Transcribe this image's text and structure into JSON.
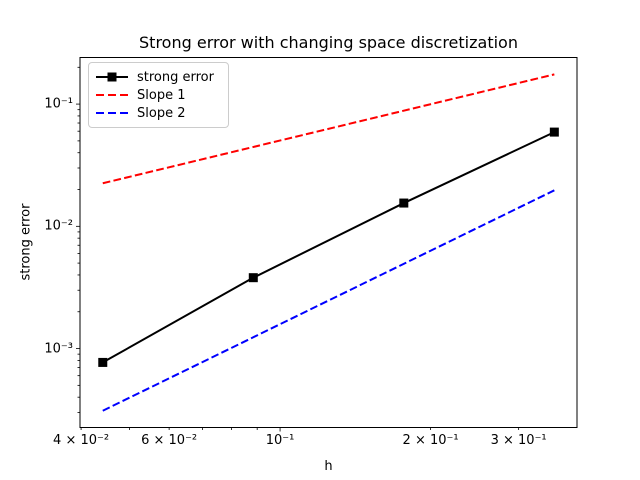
{
  "figure": {
    "title": "Strong error with changing space discretization",
    "xlabel": "h",
    "ylabel": "strong error"
  },
  "legend": {
    "entries": [
      {
        "label": "strong error",
        "color": "#000000",
        "linestyle": "solid",
        "marker": "square"
      },
      {
        "label": "Slope 1",
        "color": "#ff0000",
        "linestyle": "dashed",
        "marker": "none"
      },
      {
        "label": "Slope 2",
        "color": "#0000ff",
        "linestyle": "dashed",
        "marker": "none"
      }
    ]
  },
  "chart_data": {
    "type": "line",
    "title": "Strong error with changing space discretization",
    "xlabel": "h",
    "ylabel": "strong error",
    "xscale": "log",
    "yscale": "log",
    "xlim": [
      0.0398,
      0.3925
    ],
    "ylim": [
      0.000226,
      0.2405
    ],
    "grid": false,
    "legend_position": "upper left",
    "x_ticks": [
      {
        "value": 0.04,
        "label": "4 × 10⁻²",
        "major": false
      },
      {
        "value": 0.05,
        "label": "",
        "major": false
      },
      {
        "value": 0.06,
        "label": "6 × 10⁻²",
        "major": false
      },
      {
        "value": 0.07,
        "label": "",
        "major": false
      },
      {
        "value": 0.08,
        "label": "",
        "major": false
      },
      {
        "value": 0.09,
        "label": "",
        "major": false
      },
      {
        "value": 0.1,
        "label": "10⁻¹",
        "major": true
      },
      {
        "value": 0.2,
        "label": "2 × 10⁻¹",
        "major": false
      },
      {
        "value": 0.3,
        "label": "3 × 10⁻¹",
        "major": false
      }
    ],
    "y_ticks": [
      {
        "value": 0.1,
        "label": "10⁻¹"
      },
      {
        "value": 0.01,
        "label": "10⁻²"
      },
      {
        "value": 0.001,
        "label": "10⁻³"
      }
    ],
    "series": [
      {
        "name": "strong error",
        "color": "#000000",
        "linestyle": "solid",
        "marker": "square",
        "x": [
          0.0442,
          0.0884,
          0.1768,
          0.3536
        ],
        "y": [
          0.00077,
          0.0038,
          0.0155,
          0.059
        ]
      },
      {
        "name": "Slope 1",
        "color": "#ff0000",
        "linestyle": "dashed",
        "marker": "none",
        "x": [
          0.0442,
          0.3536
        ],
        "y": [
          0.0225,
          0.175
        ]
      },
      {
        "name": "Slope 2",
        "color": "#0000ff",
        "linestyle": "dashed",
        "marker": "none",
        "x": [
          0.0442,
          0.3536
        ],
        "y": [
          0.00031,
          0.0197
        ]
      }
    ]
  }
}
